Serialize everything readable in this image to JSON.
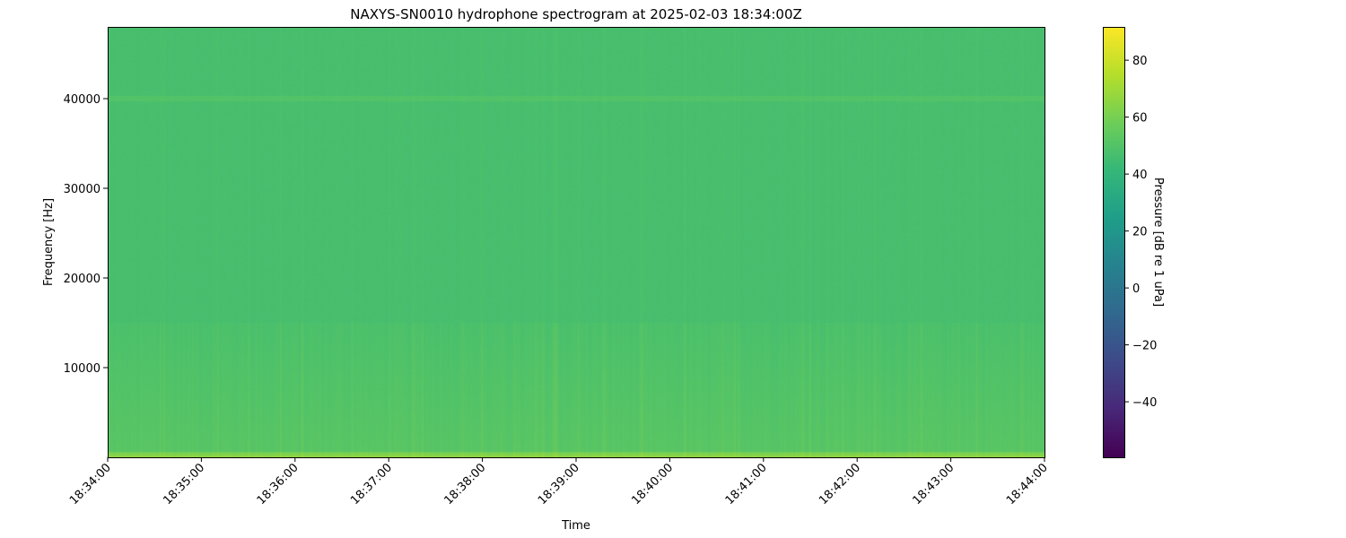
{
  "chart_data": {
    "type": "heatmap",
    "title": "NAXYS-SN0010 hydrophone spectrogram at 2025-02-03 18:34:00Z",
    "xlabel": "Time",
    "ylabel": "Frequency [Hz]",
    "colorbar_label": "Pressure [dB re 1 uPa]",
    "colormap": "viridis",
    "xlim": [
      "18:34:00",
      "18:44:00"
    ],
    "ylim": [
      0,
      48000
    ],
    "clim": [
      -59.5,
      91.7
    ],
    "x_ticks": [
      "18:34:00",
      "18:35:00",
      "18:36:00",
      "18:37:00",
      "18:38:00",
      "18:39:00",
      "18:40:00",
      "18:41:00",
      "18:42:00",
      "18:43:00",
      "18:44:00"
    ],
    "y_ticks": [
      10000,
      20000,
      30000,
      40000
    ],
    "colorbar_ticks": [
      -40,
      -20,
      0,
      20,
      40,
      60,
      80
    ],
    "levels": {
      "background_db": 47,
      "band_40000_hz_db": 50,
      "below_15000_hz_db": 51,
      "lowest_band_db": 66
    },
    "grid": false
  }
}
